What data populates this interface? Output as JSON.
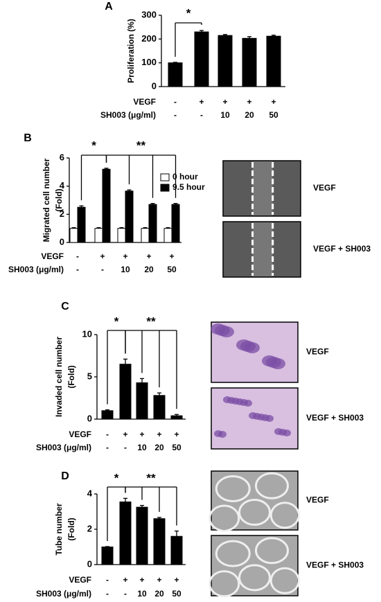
{
  "chart_data": [
    {
      "type": "bar",
      "panel_label": "A",
      "ylabel": [
        "Proliferation (%)"
      ],
      "ylim": [
        0,
        300
      ],
      "yticks": [
        0,
        100,
        200,
        300
      ],
      "color": "#000000",
      "values": [
        100,
        230,
        215,
        203,
        212
      ],
      "errors": [
        2,
        6,
        4,
        7,
        4
      ],
      "treatments": [
        {
          "name": "VEGF",
          "values": [
            "-",
            "+",
            "+",
            "+",
            "+"
          ]
        },
        {
          "name": "SH003 (μg/ml)",
          "values": [
            "-",
            "-",
            "10",
            "20",
            "50"
          ]
        }
      ],
      "significance": [
        {
          "text": "*",
          "compares": [
            0,
            1
          ]
        }
      ]
    },
    {
      "type": "bar",
      "panel_label": "B",
      "ylabel": [
        "Migrated cell number",
        "(Fold)"
      ],
      "ylim": [
        0,
        6
      ],
      "yticks": [
        0,
        2,
        4,
        6
      ],
      "series": [
        {
          "name": "0 hour",
          "color": "#ffffff",
          "values": [
            1,
            1,
            1,
            1,
            1
          ],
          "errors": [
            0.05,
            0.05,
            0.05,
            0.05,
            0.05
          ]
        },
        {
          "name": "9.5 hour",
          "color": "#000000",
          "values": [
            2.5,
            5.2,
            3.65,
            2.7,
            2.7
          ],
          "errors": [
            0.1,
            0.07,
            0.08,
            0.07,
            0.07
          ]
        }
      ],
      "treatments": [
        {
          "name": "VEGF",
          "values": [
            "-",
            "+",
            "+",
            "+",
            "+"
          ]
        },
        {
          "name": "SH003 (μg/ml)",
          "values": [
            "-",
            "-",
            "10",
            "20",
            "50"
          ]
        }
      ],
      "significance": [
        {
          "text": "*",
          "compares": [
            0,
            1
          ]
        },
        {
          "text": "**",
          "compares": [
            1,
            2,
            3,
            4
          ]
        }
      ],
      "image_labels": [
        "VEGF",
        "VEGF + SH003"
      ]
    },
    {
      "type": "bar",
      "panel_label": "C",
      "ylabel": [
        "Invaded cell number",
        "(Fold)"
      ],
      "ylim": [
        0,
        10
      ],
      "yticks": [
        0,
        5,
        10
      ],
      "color": "#000000",
      "values": [
        1,
        6.5,
        4.3,
        2.8,
        0.4
      ],
      "errors": [
        0.1,
        0.6,
        0.5,
        0.3,
        0.15
      ],
      "treatments": [
        {
          "name": "VEGF",
          "values": [
            "-",
            "+",
            "+",
            "+",
            "+"
          ]
        },
        {
          "name": "SH003 (μg/ml)",
          "values": [
            "-",
            "-",
            "10",
            "20",
            "50"
          ]
        }
      ],
      "significance": [
        {
          "text": "*",
          "compares": [
            0,
            1
          ]
        },
        {
          "text": "**",
          "compares": [
            1,
            2,
            3,
            4
          ]
        }
      ],
      "image_labels": [
        "VEGF",
        "VEGF + SH003"
      ]
    },
    {
      "type": "bar",
      "panel_label": "D",
      "ylabel": [
        "Tube number",
        "(Fold)"
      ],
      "ylim": [
        0,
        4
      ],
      "yticks": [
        0,
        2,
        4
      ],
      "color": "#000000",
      "values": [
        1,
        3.55,
        3.25,
        2.6,
        1.6
      ],
      "errors": [
        0.02,
        0.2,
        0.1,
        0.07,
        0.3
      ],
      "treatments": [
        {
          "name": "VEGF",
          "values": [
            "-",
            "+",
            "+",
            "+",
            "+"
          ]
        },
        {
          "name": "SH003 (μg/ml)",
          "values": [
            "-",
            "-",
            "10",
            "20",
            "50"
          ]
        }
      ],
      "significance": [
        {
          "text": "*",
          "compares": [
            0,
            1
          ]
        },
        {
          "text": "**",
          "compares": [
            1,
            2,
            3,
            4
          ]
        }
      ],
      "image_labels": [
        "VEGF",
        "VEGF + SH003"
      ]
    }
  ]
}
